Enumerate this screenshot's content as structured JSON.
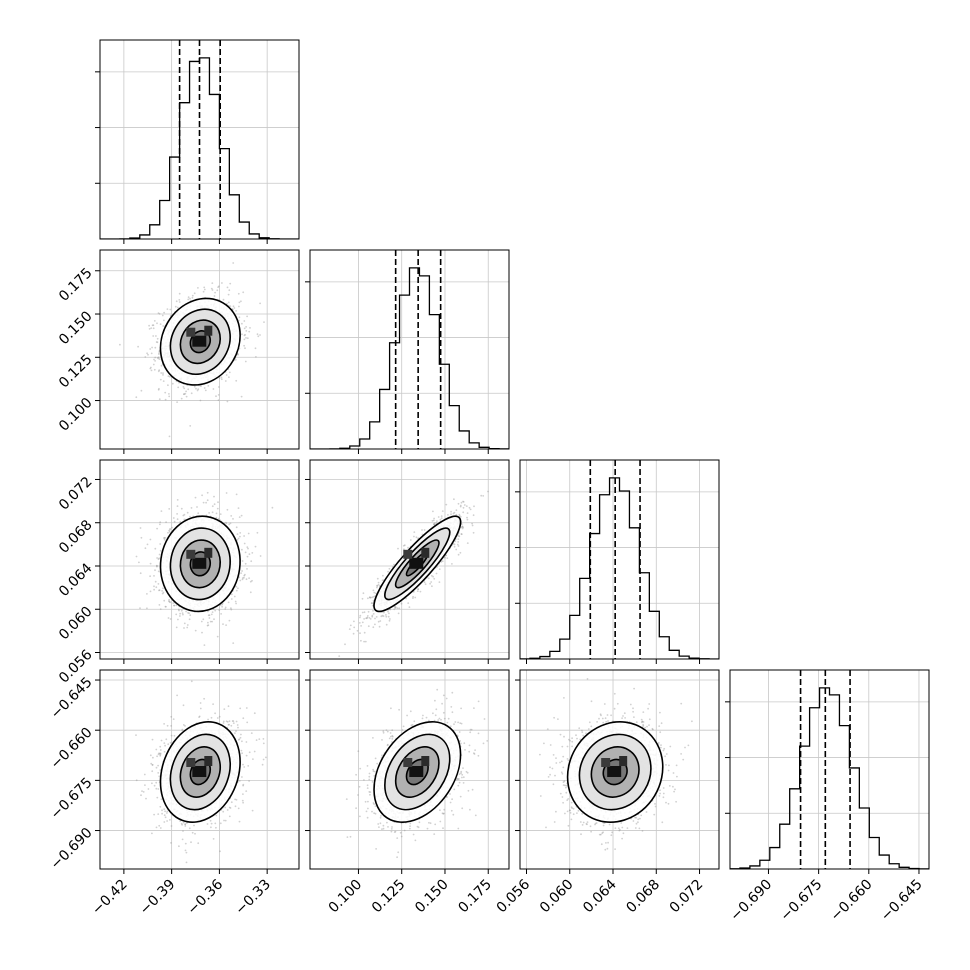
{
  "chart_data": {
    "type": "corner",
    "variables": [
      {
        "range": [
          -0.435,
          -0.31
        ],
        "ticks": [
          -0.42,
          -0.39,
          -0.36,
          -0.33
        ],
        "tick_labels": [
          "−0.42",
          "−0.39",
          "−0.36",
          "−0.33"
        ],
        "quantiles": [
          -0.385,
          -0.3725,
          -0.3595
        ],
        "mean": -0.372,
        "sd": 0.0125
      },
      {
        "range": [
          0.072,
          0.187
        ],
        "ticks": [
          0.1,
          0.125,
          0.15,
          0.175
        ],
        "tick_labels": [
          "0.100",
          "0.125",
          "0.150",
          "0.175"
        ],
        "quantiles": [
          0.1215,
          0.1345,
          0.1475
        ],
        "mean": 0.134,
        "sd": 0.0125
      },
      {
        "range": [
          0.0554,
          0.0738
        ],
        "ticks": [
          0.056,
          0.06,
          0.064,
          0.068,
          0.072
        ],
        "tick_labels": [
          "0.056",
          "0.060",
          "0.064",
          "0.068",
          "0.072"
        ],
        "quantiles": [
          0.0619,
          0.0642,
          0.0665
        ],
        "mean": 0.0642,
        "sd": 0.0022
      },
      {
        "range": [
          -0.7015,
          -0.642
        ],
        "ticks": [
          -0.69,
          -0.675,
          -0.66,
          -0.645
        ],
        "tick_labels": [
          "−0.690",
          "−0.675",
          "−0.660",
          "−0.645"
        ],
        "quantiles": [
          -0.6804,
          -0.673,
          -0.6656
        ],
        "mean": -0.6725,
        "sd": 0.0075
      }
    ],
    "correlations": [
      [
        1.0,
        0.15,
        0.05,
        0.2
      ],
      [
        0.15,
        1.0,
        0.88,
        0.35
      ],
      [
        0.05,
        0.88,
        1.0,
        0.1
      ],
      [
        0.2,
        0.35,
        0.1,
        1.0
      ]
    ],
    "contour_levels_sigma": [
      0.5,
      1.0,
      1.5,
      2.0
    ],
    "histogram_bins": 20,
    "grid": true,
    "title": "",
    "axis_labels": [
      "",
      "",
      "",
      ""
    ]
  }
}
